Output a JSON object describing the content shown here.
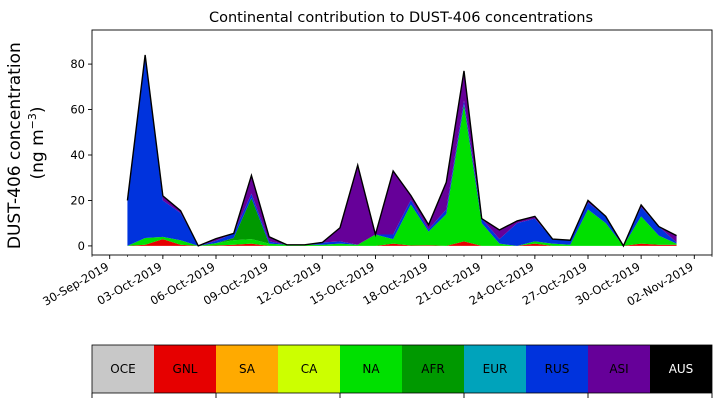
{
  "chart_data": {
    "type": "area",
    "title": "Continental contribution to DUST-406 concentrations",
    "ylabel_line1": "DUST-406 concentration",
    "ylabel_line2_prefix": "(ng m",
    "ylabel_line2_sup": "−3",
    "ylabel_line2_suffix": ")",
    "ylim": [
      -4,
      95
    ],
    "yticks": [
      0,
      20,
      40,
      60,
      80
    ],
    "xlim": [
      "2019-09-29",
      "2019-11-03"
    ],
    "xtick_labels": [
      "30-Sep-2019",
      "03-Oct-2019",
      "06-Oct-2019",
      "09-Oct-2019",
      "12-Oct-2019",
      "15-Oct-2019",
      "18-Oct-2019",
      "21-Oct-2019",
      "24-Oct-2019",
      "27-Oct-2019",
      "30-Oct-2019",
      "02-Nov-2019"
    ],
    "x": [
      "2019-10-01",
      "2019-10-02",
      "2019-10-03",
      "2019-10-04",
      "2019-10-05",
      "2019-10-06",
      "2019-10-07",
      "2019-10-08",
      "2019-10-09",
      "2019-10-10",
      "2019-10-11",
      "2019-10-12",
      "2019-10-13",
      "2019-10-14",
      "2019-10-15",
      "2019-10-16",
      "2019-10-17",
      "2019-10-18",
      "2019-10-19",
      "2019-10-20",
      "2019-10-21",
      "2019-10-22",
      "2019-10-23",
      "2019-10-24",
      "2019-10-25",
      "2019-10-26",
      "2019-10-27",
      "2019-10-28",
      "2019-10-29",
      "2019-10-30",
      "2019-10-31",
      "2019-11-01"
    ],
    "series": [
      {
        "name": "OCE",
        "color": "#c8c8c8",
        "values": [
          0,
          0,
          0,
          0,
          0,
          0,
          0,
          0,
          0,
          0,
          0,
          0,
          0,
          0,
          0,
          0,
          0,
          0,
          0,
          0,
          0,
          0,
          0,
          0,
          0,
          0,
          0,
          0,
          0,
          0,
          0,
          0
        ]
      },
      {
        "name": "GNL",
        "color": "#e60000",
        "values": [
          0,
          0.5,
          3,
          0.5,
          0,
          0.2,
          0.5,
          1,
          0,
          0,
          0,
          0,
          0,
          0,
          0,
          1,
          0.2,
          0.3,
          0,
          2,
          0,
          0,
          0,
          1,
          0,
          0,
          0,
          0,
          0,
          1,
          0.5,
          0.5
        ]
      },
      {
        "name": "SA",
        "color": "#ffaa00",
        "values": [
          0,
          0,
          0,
          0,
          0,
          0,
          0,
          0,
          0,
          0,
          0,
          0,
          0,
          0,
          0,
          0,
          0,
          0,
          0,
          0,
          0,
          0,
          0,
          0,
          0,
          0,
          0,
          0,
          0,
          0,
          0,
          0
        ]
      },
      {
        "name": "CA",
        "color": "#ccff00",
        "values": [
          0,
          0,
          0,
          0,
          0,
          0,
          0,
          0,
          0,
          0,
          0,
          0,
          0,
          0,
          0,
          0,
          0,
          0,
          0,
          0,
          0,
          0,
          0,
          0,
          0,
          0,
          0,
          0,
          0,
          0,
          0,
          0
        ]
      },
      {
        "name": "NA",
        "color": "#00e000",
        "values": [
          0,
          3,
          1,
          2,
          0,
          1,
          2,
          2,
          1,
          0.5,
          0.5,
          0.5,
          1,
          0.5,
          5,
          2,
          18,
          6,
          14,
          60,
          10,
          1,
          0,
          1,
          1,
          0.5,
          16,
          10,
          0,
          12,
          4,
          0.5
        ]
      },
      {
        "name": "AFR",
        "color": "#009900",
        "values": [
          0,
          0,
          0,
          0,
          0,
          0,
          1,
          18,
          0,
          0,
          0,
          0,
          0,
          0,
          0,
          0,
          0,
          0,
          0,
          0,
          0,
          0,
          0,
          0,
          0,
          0,
          0,
          0,
          0,
          0,
          0,
          0
        ]
      },
      {
        "name": "EUR",
        "color": "#00a3bb",
        "values": [
          0,
          0,
          0,
          0,
          0,
          0,
          0,
          0,
          0,
          0,
          0,
          0,
          0,
          0,
          0,
          0,
          0,
          0,
          0,
          0,
          0,
          0,
          0,
          0,
          0,
          0,
          0,
          0,
          0,
          0,
          0,
          0
        ]
      },
      {
        "name": "RUS",
        "color": "#0033dd",
        "values": [
          20,
          80,
          16,
          12,
          0,
          1,
          2,
          2,
          1,
          0,
          0,
          1,
          1,
          0,
          0,
          2,
          2,
          1,
          2,
          2,
          2,
          2,
          10,
          10,
          2,
          2,
          3,
          3,
          0,
          4,
          4,
          0.5
        ]
      },
      {
        "name": "ASI",
        "color": "#660099",
        "values": [
          0,
          0.5,
          2,
          1,
          0,
          1,
          0,
          8,
          2,
          0,
          0,
          0,
          6,
          35,
          0,
          28,
          2,
          2,
          12,
          13,
          0,
          4,
          1,
          1,
          0,
          0,
          1,
          0,
          0,
          1,
          0,
          3
        ]
      },
      {
        "name": "AUS",
        "color": "#000000",
        "values": [
          0,
          0,
          0,
          0,
          0,
          0,
          0,
          0,
          0,
          0,
          0,
          0,
          0,
          0,
          0,
          0,
          0,
          0,
          0,
          0,
          0,
          0,
          0,
          0,
          0,
          0,
          0,
          0,
          0,
          0,
          0,
          0
        ]
      }
    ],
    "legend": {
      "placement": "bottom",
      "entries": [
        {
          "label": "OCE",
          "color": "#c8c8c8",
          "text_color": "#000000"
        },
        {
          "label": "GNL",
          "color": "#e60000",
          "text_color": "#000000"
        },
        {
          "label": "SA",
          "color": "#ffaa00",
          "text_color": "#000000"
        },
        {
          "label": "CA",
          "color": "#ccff00",
          "text_color": "#000000"
        },
        {
          "label": "NA",
          "color": "#00e000",
          "text_color": "#000000"
        },
        {
          "label": "AFR",
          "color": "#009900",
          "text_color": "#000000"
        },
        {
          "label": "EUR",
          "color": "#00a3bb",
          "text_color": "#000000"
        },
        {
          "label": "RUS",
          "color": "#0033dd",
          "text_color": "#000000"
        },
        {
          "label": "ASI",
          "color": "#660099",
          "text_color": "#000000"
        },
        {
          "label": "AUS",
          "color": "#000000",
          "text_color": "#ffffff"
        }
      ]
    },
    "grid": false
  }
}
